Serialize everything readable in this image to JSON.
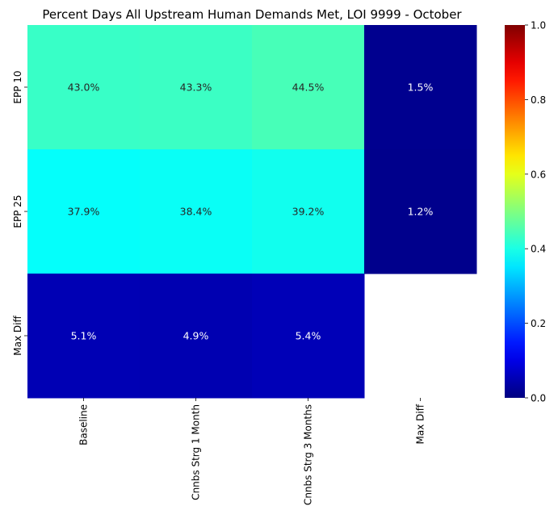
{
  "chart_data": {
    "type": "heatmap",
    "title": "Percent Days All Upstream Human Demands Met, LOI 9999 - October",
    "xlabel": "",
    "ylabel": "",
    "x_categories": [
      "Baseline",
      "Cnnbs Strg 1 Month",
      "Cnnbs Strg 3 Months",
      "Max Diff"
    ],
    "y_categories": [
      "EPP 10",
      "EPP 25",
      "Max Diff"
    ],
    "values": [
      [
        0.43,
        0.433,
        0.445,
        0.015
      ],
      [
        0.379,
        0.384,
        0.392,
        0.012
      ],
      [
        0.051,
        0.049,
        0.054,
        null
      ]
    ],
    "labels": [
      [
        "43.0%",
        "43.3%",
        "44.5%",
        "1.5%"
      ],
      [
        "37.9%",
        "38.4%",
        "39.2%",
        "1.2%"
      ],
      [
        "5.1%",
        "4.9%",
        "5.4%",
        ""
      ]
    ],
    "colormap": "jet",
    "vmin": 0.0,
    "vmax": 1.0,
    "colorbar_ticks": [
      "0.0",
      "0.2",
      "0.4",
      "0.6",
      "0.8",
      "1.0"
    ],
    "colorbar_tick_values": [
      0.0,
      0.2,
      0.4,
      0.6,
      0.8,
      1.0
    ],
    "grid": false,
    "legend": "colorbar-right"
  }
}
